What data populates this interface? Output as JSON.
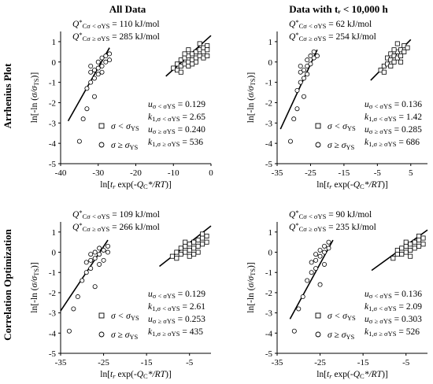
{
  "col_titles": [
    "All Data",
    "Data with tᵣ < 10,000 h"
  ],
  "row_titles": [
    "Arrhenius Plot",
    "Correlation Optimization"
  ],
  "axis_labels": {
    "ylabel": "ln[-ln (σ/σTS)]",
    "xlabel": "ln[tᵣ exp(-QC*/RT)]"
  },
  "legend": {
    "below": "σ < σYS",
    "above": "σ ≥ σYS"
  },
  "chart_data": [
    {
      "type": "scatter",
      "id": "arrhenius-all",
      "title": "All Data / Arrhenius Plot",
      "xlim": [
        -40,
        0
      ],
      "ylim": [
        -5,
        1.5
      ],
      "xticks": [
        -40,
        -30,
        -20,
        -10,
        0
      ],
      "yticks": [
        -5,
        -4,
        -3,
        -2,
        -1,
        0,
        1
      ],
      "params": {
        "Q_low": "110 kJ/mol",
        "Q_high": "285 kJ/mol",
        "u_low": "0.129",
        "k_low": "2.65",
        "u_high": "0.240",
        "k_high": "536"
      },
      "series": [
        {
          "name": "σ < σYS",
          "marker": "square",
          "points": [
            [
              -10,
              -0.3
            ],
            [
              -9,
              -0.1
            ],
            [
              -8,
              -0.2
            ],
            [
              -8,
              0.1
            ],
            [
              -7,
              0.2
            ],
            [
              -7,
              -0.1
            ],
            [
              -6,
              0.3
            ],
            [
              -6,
              0
            ],
            [
              -5,
              0.1
            ],
            [
              -5,
              0.4
            ],
            [
              -4,
              0.5
            ],
            [
              -4,
              0.2
            ],
            [
              -3,
              0.6
            ],
            [
              -3,
              0.3
            ],
            [
              -2,
              0.7
            ],
            [
              -2,
              0.5
            ],
            [
              -1,
              0.8
            ],
            [
              -1,
              0.6
            ],
            [
              -9,
              -0.4
            ],
            [
              -6,
              -0.2
            ],
            [
              -4,
              0
            ],
            [
              -2,
              0.2
            ],
            [
              -3,
              0.9
            ],
            [
              -5,
              -0.1
            ],
            [
              -7,
              0.4
            ],
            [
              -8,
              -0.5
            ],
            [
              -1,
              0.3
            ],
            [
              -6,
              0.6
            ]
          ]
        },
        {
          "name": "σ ≥ σYS",
          "marker": "circle",
          "points": [
            [
              -35,
              -3.9
            ],
            [
              -34,
              -2.8
            ],
            [
              -33,
              -2.3
            ],
            [
              -33,
              -1.3
            ],
            [
              -32,
              -1.0
            ],
            [
              -32,
              -0.5
            ],
            [
              -31,
              -0.4
            ],
            [
              -31,
              -0.8
            ],
            [
              -30,
              -0.3
            ],
            [
              -30,
              0.0
            ],
            [
              -29,
              -0.2
            ],
            [
              -29,
              0.2
            ],
            [
              -28,
              0.0
            ],
            [
              -28,
              0.3
            ],
            [
              -27,
              0.4
            ],
            [
              -27,
              0.1
            ],
            [
              -31,
              -1.7
            ],
            [
              -30,
              -0.6
            ],
            [
              -32,
              -0.2
            ],
            [
              -29,
              -0.5
            ]
          ]
        }
      ],
      "fit_lines": [
        {
          "x": [
            -12,
            0
          ],
          "y": [
            -0.7,
            1.3
          ]
        },
        {
          "x": [
            -38,
            -27
          ],
          "y": [
            -2.9,
            0.7
          ]
        }
      ]
    },
    {
      "type": "scatter",
      "id": "arrhenius-10k",
      "title": "Data with tᵣ < 10,000 h / Arrhenius Plot",
      "xlim": [
        -35,
        10
      ],
      "ylim": [
        -5,
        1.5
      ],
      "xticks": [
        -35,
        -25,
        -15,
        -5,
        5
      ],
      "yticks": [
        -5,
        -4,
        -3,
        -2,
        -1,
        0,
        1
      ],
      "params": {
        "Q_low": "62 kJ/mol",
        "Q_high": "254 kJ/mol",
        "u_low": "0.136",
        "k_low": "1.42",
        "u_high": "0.285",
        "k_high": "686"
      },
      "series": [
        {
          "name": "σ < σYS",
          "marker": "square",
          "points": [
            [
              -4,
              -0.4
            ],
            [
              -3,
              -0.2
            ],
            [
              -2,
              -0.1
            ],
            [
              -2,
              0.2
            ],
            [
              -1,
              0.1
            ],
            [
              -1,
              0.4
            ],
            [
              0,
              0.3
            ],
            [
              0,
              0
            ],
            [
              1,
              0.5
            ],
            [
              1,
              0.2
            ],
            [
              2,
              0.6
            ],
            [
              2,
              0.3
            ],
            [
              3,
              0.8
            ],
            [
              3,
              0.5
            ],
            [
              4,
              0.7
            ],
            [
              -3,
              -0.5
            ],
            [
              0,
              0.6
            ],
            [
              1,
              0.9
            ],
            [
              -1,
              -0.2
            ],
            [
              2,
              0
            ]
          ]
        },
        {
          "name": "σ ≥ σYS",
          "marker": "circle",
          "points": [
            [
              -31,
              -3.9
            ],
            [
              -30,
              -2.8
            ],
            [
              -29,
              -2.3
            ],
            [
              -29,
              -1.4
            ],
            [
              -28,
              -1.0
            ],
            [
              -28,
              -0.5
            ],
            [
              -27,
              -0.4
            ],
            [
              -27,
              -0.8
            ],
            [
              -26,
              -0.2
            ],
            [
              -26,
              0.1
            ],
            [
              -25,
              -0.1
            ],
            [
              -25,
              0.3
            ],
            [
              -24,
              0.2
            ],
            [
              -24,
              0.5
            ],
            [
              -23,
              0.3
            ],
            [
              -27,
              -1.7
            ],
            [
              -26,
              -0.6
            ],
            [
              -28,
              -0.2
            ]
          ]
        }
      ],
      "fit_lines": [
        {
          "x": [
            -7,
            5
          ],
          "y": [
            -0.9,
            1.1
          ]
        },
        {
          "x": [
            -34,
            -23
          ],
          "y": [
            -3.3,
            0.6
          ]
        }
      ]
    },
    {
      "type": "scatter",
      "id": "corr-all",
      "title": "All Data / Correlation Optimization",
      "xlim": [
        -35,
        0
      ],
      "ylim": [
        -5,
        1.5
      ],
      "xticks": [
        -35,
        -25,
        -15,
        -5
      ],
      "yticks": [
        -5,
        -4,
        -3,
        -2,
        -1,
        0,
        1
      ],
      "params": {
        "Q_low": "109 kJ/mol",
        "Q_high": "266 kJ/mol",
        "u_low": "0.129",
        "k_low": "2.61",
        "u_high": "0.253",
        "k_high": "435"
      },
      "series": [
        {
          "name": "σ < σYS",
          "marker": "square",
          "points": [
            [
              -9,
              -0.2
            ],
            [
              -8,
              0
            ],
            [
              -8,
              -0.3
            ],
            [
              -7,
              0.2
            ],
            [
              -7,
              -0.1
            ],
            [
              -6,
              0.3
            ],
            [
              -6,
              0
            ],
            [
              -5,
              0.4
            ],
            [
              -5,
              0.1
            ],
            [
              -4,
              0.5
            ],
            [
              -4,
              0.2
            ],
            [
              -3,
              0.6
            ],
            [
              -3,
              0.3
            ],
            [
              -2,
              0.7
            ],
            [
              -2,
              0.4
            ],
            [
              -1,
              0.8
            ],
            [
              -1,
              0.5
            ],
            [
              -5,
              -0.2
            ],
            [
              -3,
              0
            ],
            [
              -6,
              0.5
            ],
            [
              -2,
              0.9
            ],
            [
              -4,
              -0.1
            ]
          ]
        },
        {
          "name": "σ ≥ σYS",
          "marker": "circle",
          "points": [
            [
              -33,
              -3.9
            ],
            [
              -32,
              -2.8
            ],
            [
              -31,
              -2.2
            ],
            [
              -30,
              -1.4
            ],
            [
              -29,
              -1.0
            ],
            [
              -29,
              -0.5
            ],
            [
              -28,
              -0.4
            ],
            [
              -28,
              -0.8
            ],
            [
              -27,
              -0.3
            ],
            [
              -27,
              0
            ],
            [
              -26,
              -0.1
            ],
            [
              -26,
              0.2
            ],
            [
              -25,
              0.1
            ],
            [
              -25,
              -0.4
            ],
            [
              -24,
              0.3
            ],
            [
              -24,
              0
            ],
            [
              -27,
              -1.7
            ],
            [
              -26,
              -0.6
            ],
            [
              -28,
              -0.1
            ]
          ]
        }
      ],
      "fit_lines": [
        {
          "x": [
            -12,
            0
          ],
          "y": [
            -0.7,
            1.3
          ]
        },
        {
          "x": [
            -35,
            -24
          ],
          "y": [
            -2.9,
            0.6
          ]
        }
      ]
    },
    {
      "type": "scatter",
      "id": "corr-10k",
      "title": "Data with tᵣ < 10,000 h / Correlation Optimization",
      "xlim": [
        -35,
        0
      ],
      "ylim": [
        -5,
        1.5
      ],
      "xticks": [
        -35,
        -25,
        -15,
        -5
      ],
      "yticks": [
        -5,
        -4,
        -3,
        -2,
        -1,
        0,
        1
      ],
      "params": {
        "Q_low": "90 kJ/mol",
        "Q_high": "235 kJ/mol",
        "u_low": "0.136",
        "k_low": "2.09",
        "u_high": "0.303",
        "k_high": "526"
      },
      "series": [
        {
          "name": "σ < σYS",
          "marker": "square",
          "points": [
            [
              -8,
              -0.3
            ],
            [
              -7,
              -0.1
            ],
            [
              -7,
              0.1
            ],
            [
              -6,
              0.2
            ],
            [
              -6,
              -0.1
            ],
            [
              -5,
              0.3
            ],
            [
              -5,
              0
            ],
            [
              -4,
              0.4
            ],
            [
              -4,
              0.1
            ],
            [
              -3,
              0.5
            ],
            [
              -3,
              0.2
            ],
            [
              -2,
              0.6
            ],
            [
              -2,
              0.3
            ],
            [
              -1,
              0.7
            ],
            [
              -1,
              0.4
            ],
            [
              -4,
              -0.2
            ],
            [
              -2,
              0.8
            ],
            [
              -5,
              0.5
            ]
          ]
        },
        {
          "name": "σ ≥ σYS",
          "marker": "circle",
          "points": [
            [
              -31,
              -3.9
            ],
            [
              -30,
              -2.8
            ],
            [
              -29,
              -2.2
            ],
            [
              -28,
              -1.4
            ],
            [
              -27,
              -1.0
            ],
            [
              -27,
              -0.5
            ],
            [
              -26,
              -0.4
            ],
            [
              -26,
              -0.8
            ],
            [
              -25,
              -0.2
            ],
            [
              -25,
              0.1
            ],
            [
              -24,
              0
            ],
            [
              -24,
              0.3
            ],
            [
              -23,
              0.2
            ],
            [
              -23,
              0.5
            ],
            [
              -25,
              -1.6
            ],
            [
              -24,
              -0.6
            ],
            [
              -26,
              -0.1
            ]
          ]
        }
      ],
      "fit_lines": [
        {
          "x": [
            -13,
            0
          ],
          "y": [
            -0.9,
            1.1
          ]
        },
        {
          "x": [
            -32,
            -22
          ],
          "y": [
            -3.3,
            0.6
          ]
        }
      ]
    }
  ]
}
